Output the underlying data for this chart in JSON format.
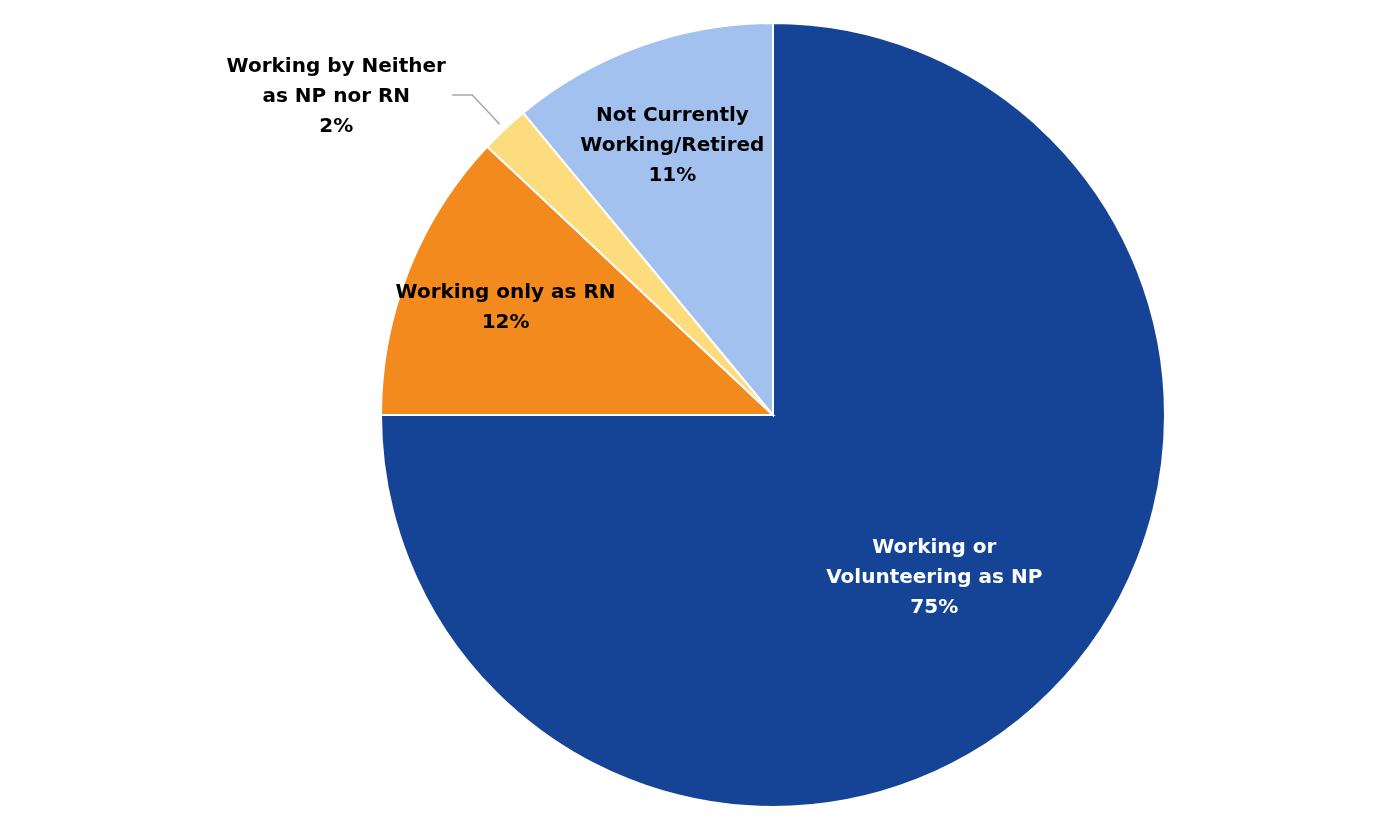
{
  "chart_data": {
    "type": "pie",
    "categories": [
      "Working or Volunteering as NP",
      "Working only as RN",
      "Working by Neither as NP nor RN",
      "Not Currently Working/Retired"
    ],
    "values": [
      75,
      12,
      2,
      11
    ],
    "colors": [
      "#154496",
      "#f28a1e",
      "#fcdc7c",
      "#a3c1ee"
    ],
    "value_labels": [
      "75%",
      "12%",
      "2%",
      "11%"
    ]
  }
}
